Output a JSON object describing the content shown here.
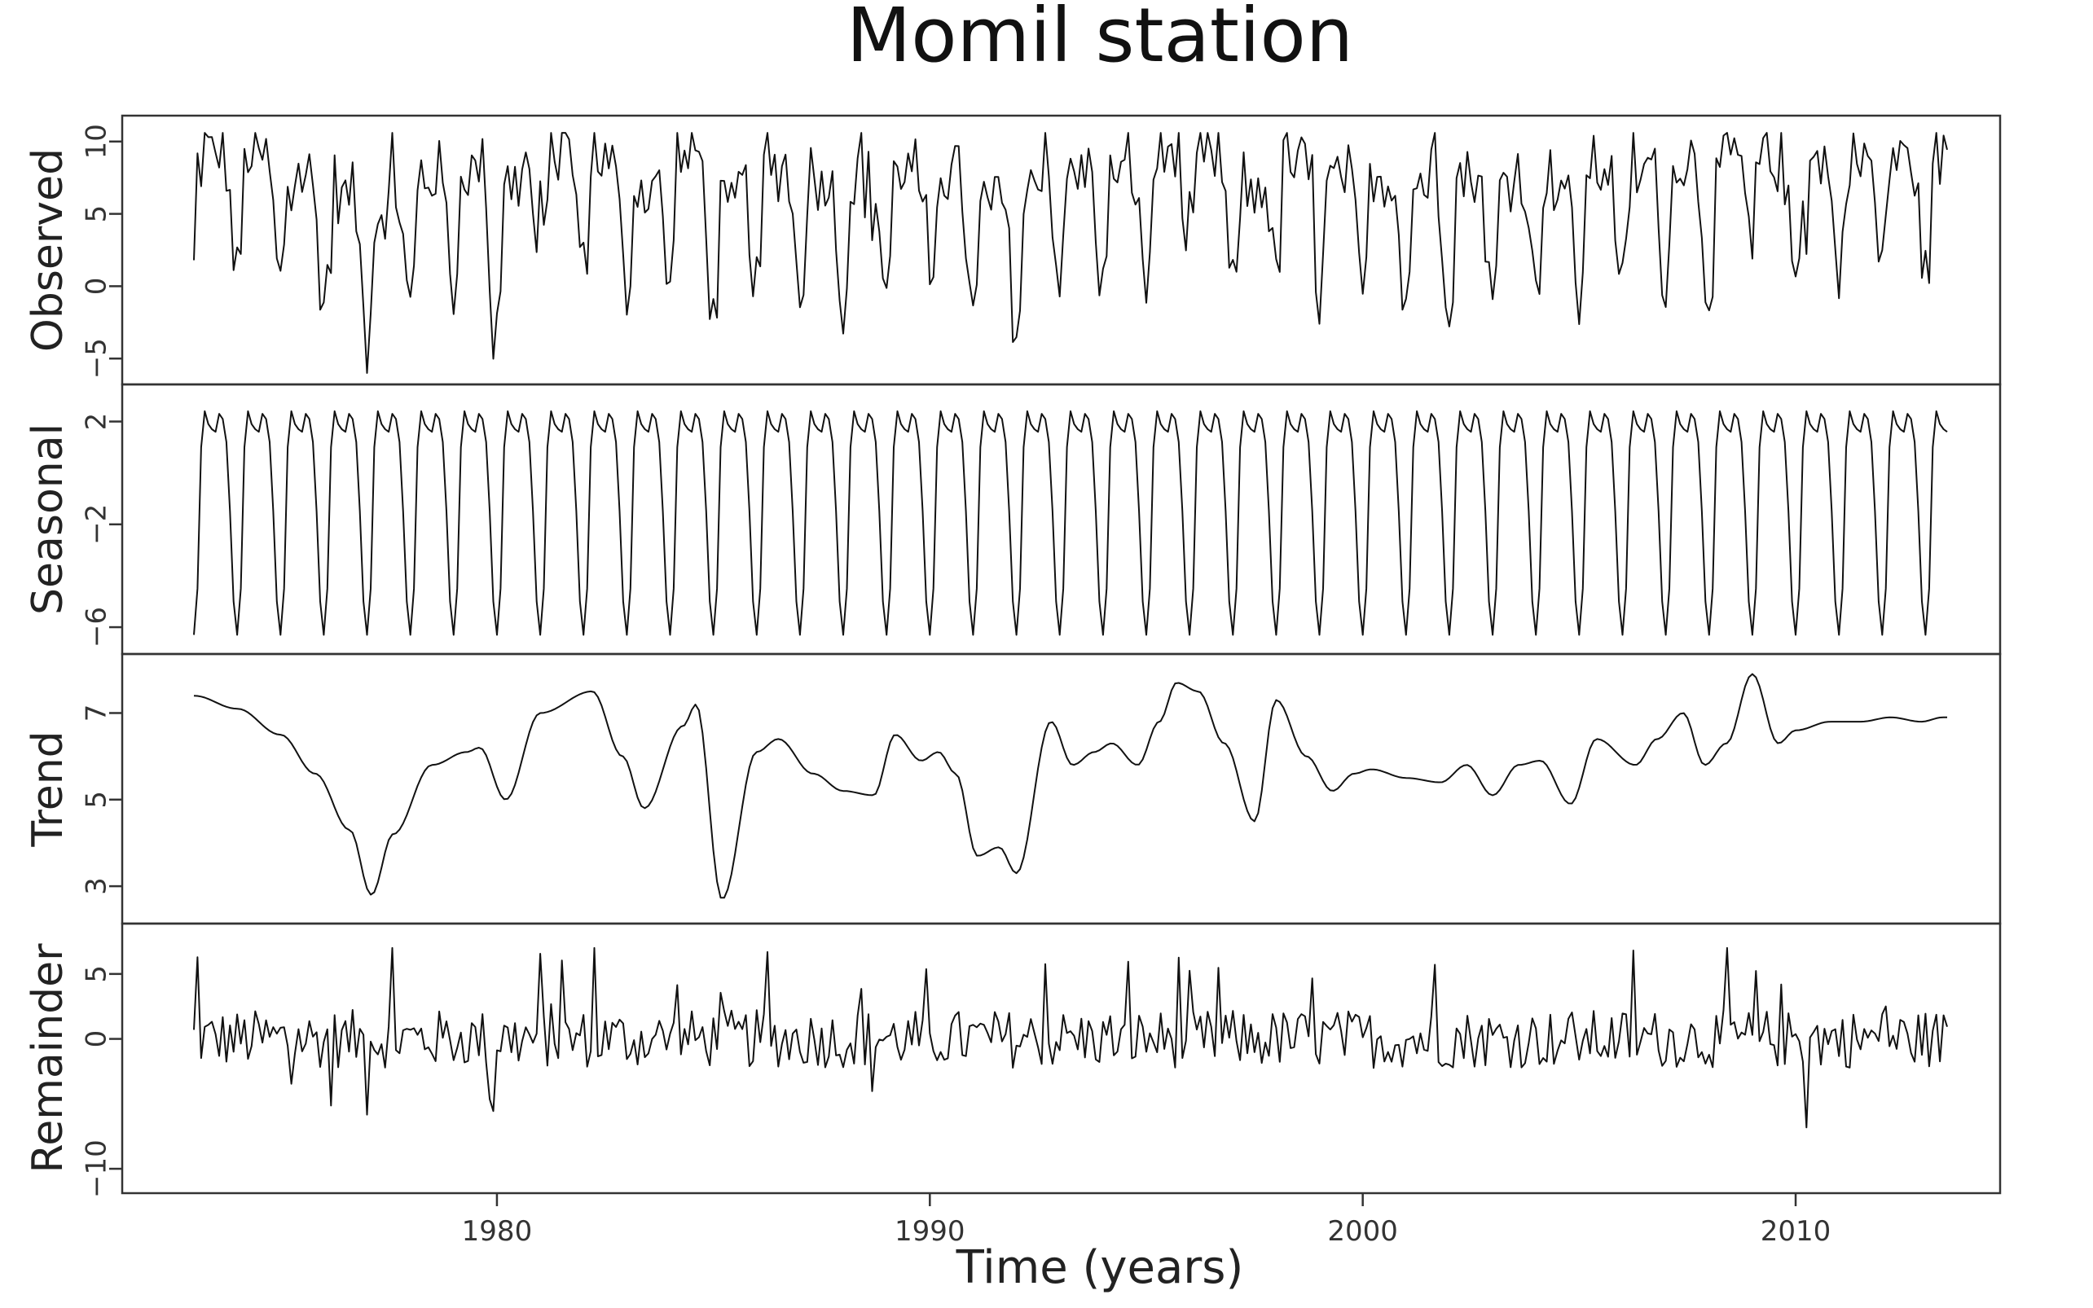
{
  "chart_data": {
    "type": "line",
    "title": "Momil station",
    "xlabel": "Time (years)",
    "x_ticks": [
      1980,
      1990,
      2000,
      2010
    ],
    "x_range": [
      1973,
      2013.5
    ],
    "grid": false,
    "panels": [
      {
        "name": "Observed",
        "ylim": [
          -6,
          11
        ],
        "y_ticks": [
          "−5",
          "0",
          "5",
          "10"
        ],
        "y_tick_values": [
          -5,
          0,
          5,
          10
        ]
      },
      {
        "name": "Seasonal",
        "ylim": [
          -6.6,
          3
        ],
        "y_ticks": [
          "−6",
          "−2",
          "2"
        ],
        "y_tick_values": [
          -6,
          -2,
          2
        ]
      },
      {
        "name": "Trend",
        "ylim": [
          2.4,
          8.1
        ],
        "y_ticks": [
          "3",
          "5",
          "7"
        ],
        "y_tick_values": [
          3,
          5,
          7
        ],
        "knots": {
          "x": [
            1973.0,
            1974.0,
            1975.0,
            1975.8,
            1976.6,
            1977.1,
            1977.6,
            1978.5,
            1979.3,
            1979.6,
            1980.2,
            1981.0,
            1982.2,
            1982.9,
            1983.4,
            1984.3,
            1984.6,
            1985.2,
            1986.0,
            1986.5,
            1987.3,
            1988.0,
            1988.7,
            1989.2,
            1989.8,
            1990.2,
            1990.6,
            1991.1,
            1991.6,
            1992.0,
            1992.8,
            1993.3,
            1993.8,
            1994.2,
            1994.8,
            1995.3,
            1995.7,
            1996.2,
            1996.8,
            1997.5,
            1998.0,
            1998.7,
            1999.3,
            1999.8,
            2000.2,
            2001.0,
            2001.8,
            2002.4,
            2003.0,
            2003.6,
            2004.1,
            2004.8,
            2005.4,
            2006.3,
            2006.8,
            2007.4,
            2007.9,
            2008.4,
            2009.0,
            2009.6,
            2010.0,
            2010.8,
            2011.5,
            2012.2,
            2012.9,
            2013.4
          ],
          "y": [
            7.4,
            7.1,
            6.5,
            5.6,
            4.3,
            2.8,
            4.2,
            5.8,
            6.1,
            6.2,
            5.0,
            7.0,
            7.5,
            6.0,
            4.8,
            6.7,
            7.2,
            2.7,
            6.1,
            6.4,
            5.6,
            5.2,
            5.1,
            6.5,
            5.9,
            6.1,
            5.6,
            3.7,
            3.9,
            3.3,
            6.8,
            5.8,
            6.1,
            6.3,
            5.8,
            6.8,
            7.7,
            7.5,
            6.3,
            4.5,
            7.3,
            6.0,
            5.2,
            5.6,
            5.7,
            5.5,
            5.4,
            5.8,
            5.1,
            5.8,
            5.9,
            4.9,
            6.4,
            5.8,
            6.4,
            7.0,
            5.8,
            6.3,
            7.9,
            6.3,
            6.6,
            6.8,
            6.8,
            6.9,
            6.8,
            6.9
          ]
        }
      },
      {
        "name": "Remainder",
        "ylim": [
          -11,
          8
        ],
        "y_ticks": [
          "−10",
          "0",
          "5"
        ],
        "y_tick_values": [
          -10,
          0,
          5
        ]
      }
    ],
    "seasonal_cycle": [
      -6.3,
      -4.5,
      1.0,
      2.4,
      1.9,
      1.7,
      1.6,
      2.3,
      2.1,
      1.2,
      -1.5,
      -5.0
    ]
  }
}
